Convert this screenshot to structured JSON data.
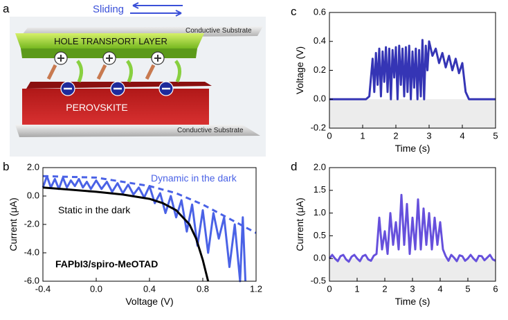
{
  "panel_labels": [
    "a",
    "b",
    "c",
    "d"
  ],
  "diagram": {
    "sliding": "Sliding",
    "htl": "HOLE TRANSPORT LAYER",
    "substrate_top": "Conductive Substrate",
    "perovskite": "PEROVSKITE",
    "substrate_bottom": "Conductive Substrate"
  },
  "chart_data": [
    {
      "type": "line",
      "xlabel": "Voltage (V)",
      "ylabel": "Current (μA)",
      "xlim": [
        -0.4,
        1.2
      ],
      "ylim": [
        -6.0,
        2.0
      ],
      "xticks": [
        {
          "value": -0.4,
          "label": "-0.4"
        },
        {
          "value": 0,
          "label": "0.0"
        },
        {
          "value": 0.4,
          "label": "0.4"
        },
        {
          "value": 0.8,
          "label": "0.8"
        },
        {
          "value": 1.2,
          "label": "1.2"
        }
      ],
      "yticks": [
        {
          "value": -6,
          "label": "-6.0"
        },
        {
          "value": -4,
          "label": "-4.0"
        },
        {
          "value": -2,
          "label": "-2.0"
        },
        {
          "value": 0,
          "label": "0.0"
        },
        {
          "value": 2,
          "label": "2.0"
        }
      ],
      "annotations": [
        "Dynamic in the dark",
        "Static in the dark",
        "FAPbI3/spiro-MeOTAD"
      ],
      "series": [
        {
          "name": "Dynamic in the dark",
          "color": "#4a62e6",
          "x": [
            -0.4,
            -0.37,
            -0.34,
            -0.31,
            -0.28,
            -0.25,
            -0.22,
            -0.19,
            -0.16,
            -0.13,
            -0.1,
            -0.07,
            -0.04,
            0,
            0.04,
            0.08,
            0.12,
            0.16,
            0.2,
            0.24,
            0.28,
            0.32,
            0.36,
            0.4,
            0.44,
            0.48,
            0.52,
            0.56,
            0.6,
            0.64,
            0.68,
            0.72,
            0.76,
            0.8,
            0.84,
            0.88,
            0.92,
            0.96,
            1.0,
            1.04,
            1.08,
            1.1,
            1.12
          ],
          "values": [
            0.6,
            1.4,
            0.6,
            1.2,
            0.5,
            1.3,
            0.6,
            1.1,
            0.7,
            1.2,
            0.6,
            1.0,
            0.5,
            1.1,
            0.5,
            1.0,
            0.3,
            0.9,
            0.2,
            0.8,
            0.1,
            0.6,
            -0.1,
            0.7,
            -0.5,
            0.2,
            -1.2,
            0.0,
            -1.5,
            -0.3,
            -2.5,
            -0.6,
            -3.5,
            -1.0,
            -4.0,
            -1.2,
            -3.0,
            -1.5,
            -5.0,
            -2.0,
            -6.0,
            -1.5,
            -6.0
          ]
        },
        {
          "color": "#4a62e6",
          "dashed": true,
          "x": [
            -0.4,
            0,
            0.4,
            0.6,
            0.8,
            1.0,
            1.2
          ],
          "values": [
            1.4,
            1.3,
            0.7,
            0.2,
            -0.6,
            -1.6,
            -2.6
          ]
        },
        {
          "name": "Static in the dark",
          "color": "#000000",
          "x": [
            -0.4,
            -0.2,
            0,
            0.2,
            0.4,
            0.5,
            0.6,
            0.7,
            0.75,
            0.8,
            0.84
          ],
          "values": [
            0.6,
            0.45,
            0.3,
            0.1,
            -0.2,
            -0.5,
            -1.0,
            -2.0,
            -3.0,
            -4.5,
            -6.0
          ]
        }
      ]
    },
    {
      "type": "line",
      "xlabel": "Time (s)",
      "ylabel": "Voltage (V)",
      "xlim": [
        0,
        5
      ],
      "ylim": [
        -0.2,
        0.6
      ],
      "xticks": [
        0,
        1,
        2,
        3,
        4,
        5
      ],
      "yticks": [
        {
          "value": -0.2,
          "label": "-0.2"
        },
        {
          "value": 0,
          "label": "0.0"
        },
        {
          "value": 0.2,
          "label": "0.2"
        },
        {
          "value": 0.4,
          "label": "0.4"
        },
        {
          "value": 0.6,
          "label": "0.6"
        }
      ],
      "series": [
        {
          "color": "#3535b5",
          "x": [
            0,
            1.1,
            1.2,
            1.3,
            1.35,
            1.4,
            1.45,
            1.5,
            1.55,
            1.6,
            1.65,
            1.7,
            1.75,
            1.8,
            1.85,
            1.9,
            1.95,
            2.0,
            2.05,
            2.1,
            2.15,
            2.2,
            2.25,
            2.3,
            2.35,
            2.4,
            2.45,
            2.5,
            2.55,
            2.6,
            2.65,
            2.7,
            2.75,
            2.8,
            2.85,
            2.9,
            2.95,
            3.0,
            3.1,
            3.2,
            3.3,
            3.4,
            3.5,
            3.6,
            3.7,
            3.8,
            3.9,
            4.0,
            4.1,
            4.2,
            5
          ],
          "values": [
            0,
            0,
            0.02,
            0.28,
            0.05,
            0.32,
            0.1,
            0.35,
            0.02,
            0.33,
            0.12,
            0.36,
            0.05,
            0.35,
            0.0,
            0.34,
            0.15,
            0.36,
            0.0,
            0.37,
            0.1,
            0.35,
            0.02,
            0.36,
            0.05,
            0.37,
            0.0,
            0.33,
            0.08,
            0.35,
            0.0,
            0.34,
            0.02,
            0.41,
            0.0,
            0.37,
            0.2,
            0.4,
            0.3,
            0.35,
            0.25,
            0.32,
            0.22,
            0.3,
            0.2,
            0.28,
            0.18,
            0.25,
            0.05,
            0,
            0
          ]
        }
      ]
    },
    {
      "type": "line",
      "xlabel": "Time (s)",
      "ylabel": "Current (μA)",
      "xlim": [
        0,
        6
      ],
      "ylim": [
        -0.5,
        2.0
      ],
      "xticks": [
        0,
        1,
        2,
        3,
        4,
        5,
        6
      ],
      "yticks": [
        {
          "value": -0.5,
          "label": "-0.5"
        },
        {
          "value": 0,
          "label": "0.0"
        },
        {
          "value": 0.5,
          "label": "0.5"
        },
        {
          "value": 1,
          "label": "1.0"
        },
        {
          "value": 1.5,
          "label": "1.5"
        },
        {
          "value": 2,
          "label": "2.0"
        }
      ],
      "series": [
        {
          "color": "#6650dc",
          "x": [
            0,
            0.1,
            0.2,
            0.3,
            0.4,
            0.5,
            0.6,
            0.7,
            0.8,
            0.9,
            1.0,
            1.1,
            1.2,
            1.3,
            1.4,
            1.5,
            1.6,
            1.7,
            1.8,
            1.9,
            2.0,
            2.1,
            2.2,
            2.3,
            2.4,
            2.5,
            2.6,
            2.7,
            2.8,
            2.9,
            3.0,
            3.1,
            3.2,
            3.3,
            3.4,
            3.5,
            3.6,
            3.7,
            3.8,
            3.9,
            4.0,
            4.1,
            4.2,
            4.3,
            4.4,
            4.5,
            4.6,
            4.7,
            4.8,
            4.9,
            5.0,
            5.1,
            5.2,
            5.3,
            5.4,
            5.5,
            5.6,
            5.7,
            5.8,
            5.9,
            6.0
          ],
          "values": [
            0.0,
            0.08,
            0.0,
            -0.06,
            0.05,
            0.08,
            -0.02,
            -0.07,
            0.04,
            0.08,
            0.0,
            -0.06,
            0.05,
            0.08,
            -0.02,
            -0.05,
            0.06,
            0.1,
            0.9,
            0.2,
            0.6,
            0.1,
            1.0,
            0.3,
            0.8,
            0.2,
            1.4,
            0.3,
            1.2,
            0.1,
            0.9,
            0.2,
            1.3,
            0.2,
            1.1,
            0.3,
            1.0,
            0.2,
            0.9,
            0.3,
            0.8,
            0.2,
            0.05,
            -0.05,
            0.08,
            0.02,
            -0.06,
            0.07,
            0.05,
            -0.05,
            0.0,
            0.08,
            0.0,
            -0.06,
            0.06,
            0.05,
            -0.04,
            0.02,
            0.08,
            -0.02,
            -0.05
          ]
        }
      ]
    }
  ]
}
